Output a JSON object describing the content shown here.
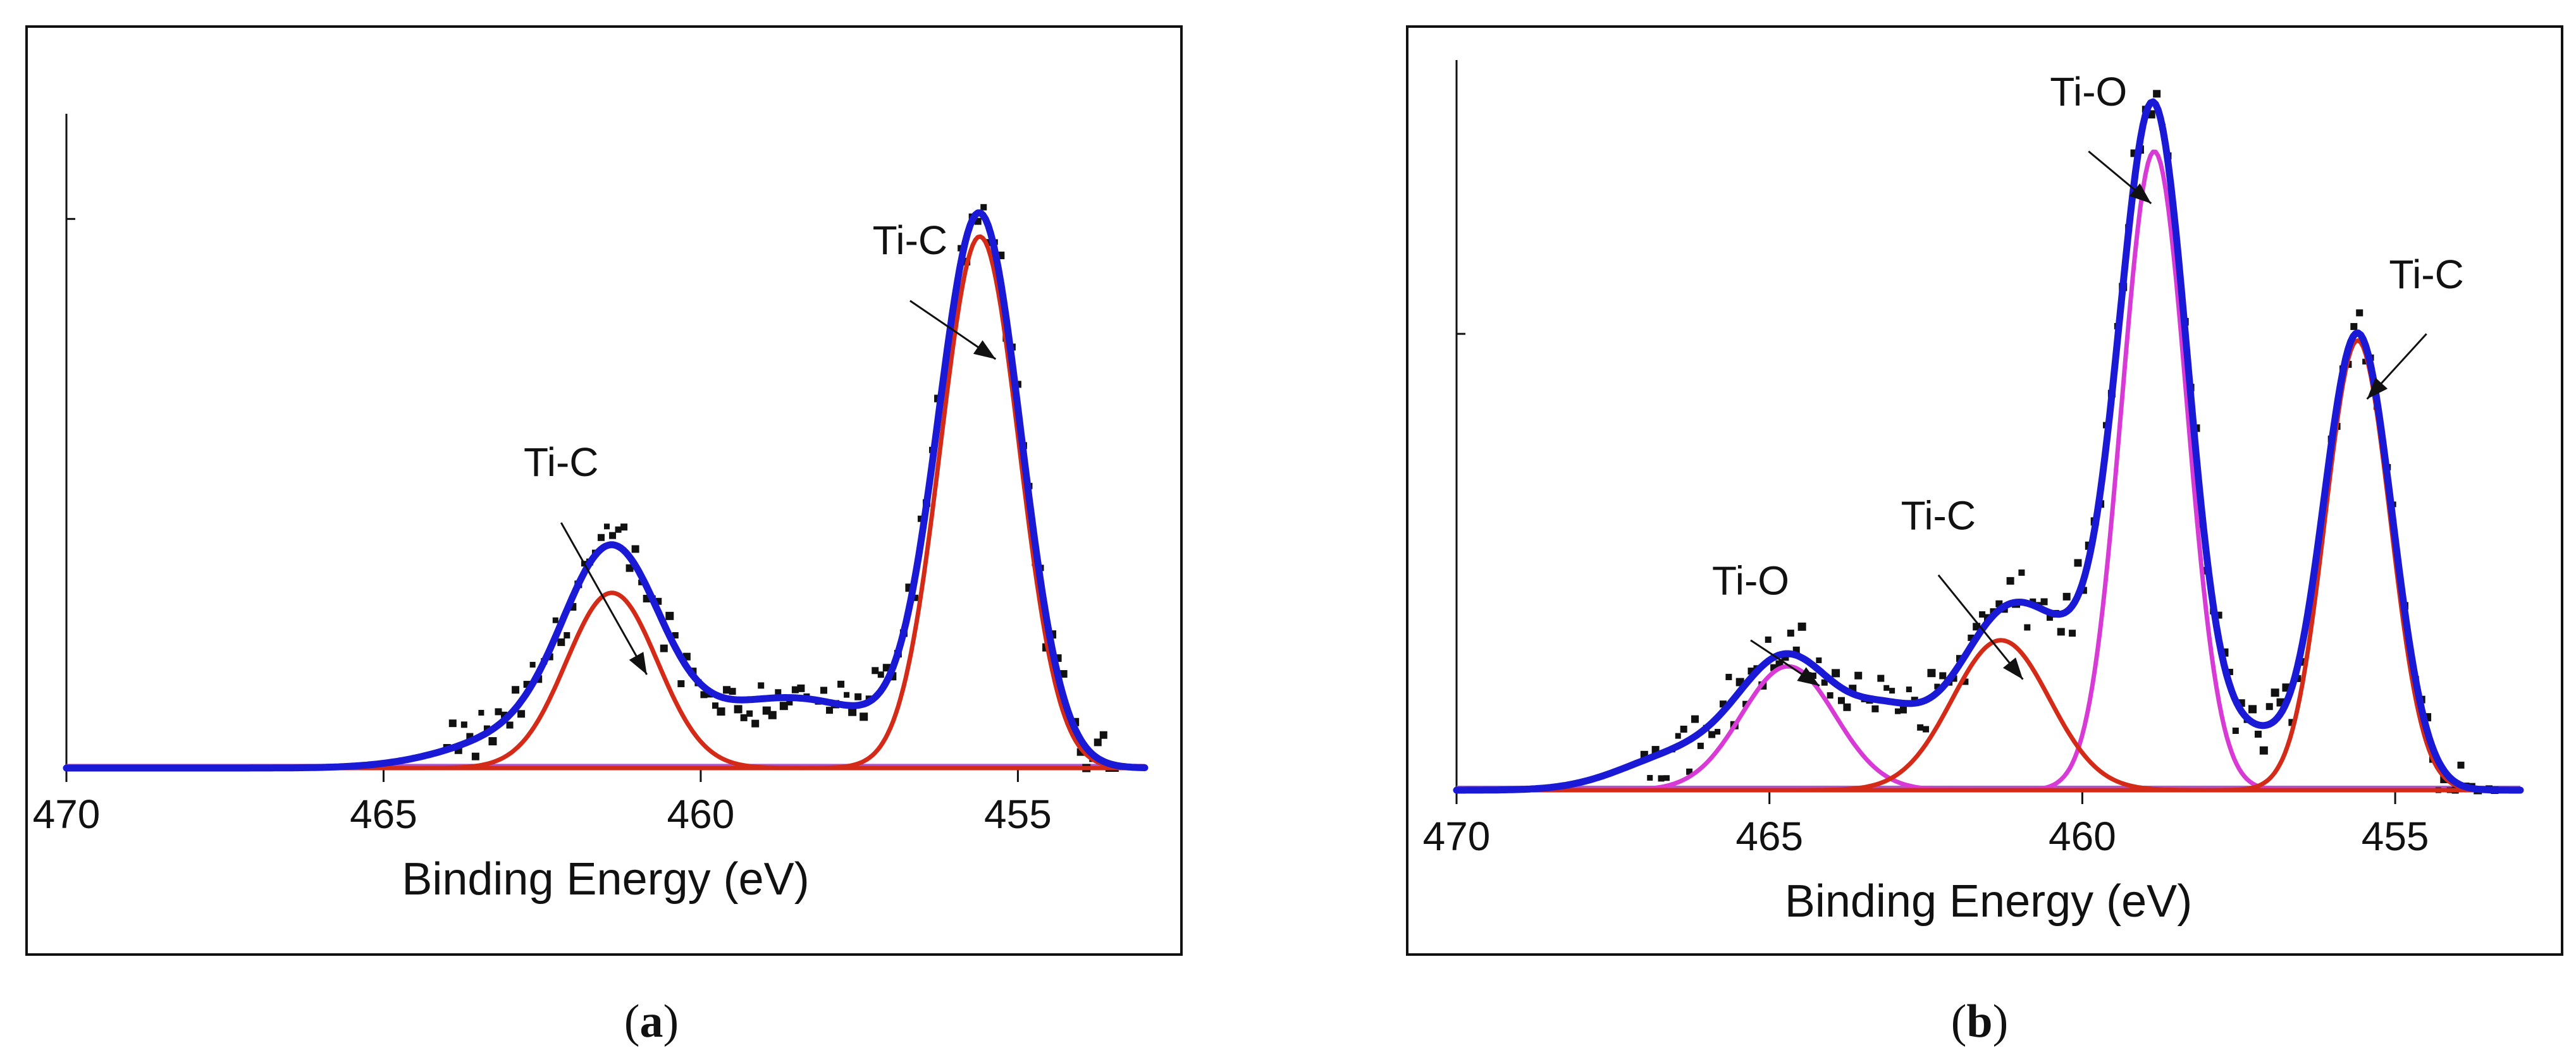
{
  "chart_data": [
    {
      "panel": "a",
      "type": "line",
      "caption_letter": "a",
      "xlabel": "Binding Energy (eV)",
      "ylabel": "",
      "xlim": [
        470,
        453
      ],
      "ylim": [
        0,
        1.12
      ],
      "x_ticks": [
        470,
        465,
        460,
        455
      ],
      "x_tick_labels": [
        "470",
        "465",
        "460",
        "455"
      ],
      "y_ticks": [
        0,
        0.94
      ],
      "colors": {
        "envelope": "#1a1ad6",
        "ti_c": "#d42a18",
        "baseline": "#b055d0",
        "points": "#111111"
      },
      "series": [
        {
          "name": "envelope",
          "color": "#1a1ad6",
          "components": [
            {
              "center": 455.6,
              "height": 0.93,
              "sigma": 0.65
            },
            {
              "center": 461.4,
              "height": 0.32,
              "sigma": 0.75
            },
            {
              "center": 458.6,
              "height": 0.12,
              "sigma": 1.6
            },
            {
              "center": 462.6,
              "height": 0.06,
              "sigma": 1.2
            }
          ]
        },
        {
          "name": "Ti-C fit 1",
          "color": "#d42a18",
          "components": [
            {
              "center": 455.6,
              "height": 0.91,
              "sigma": 0.62
            }
          ]
        },
        {
          "name": "Ti-C fit 2",
          "color": "#d42a18",
          "components": [
            {
              "center": 461.4,
              "height": 0.3,
              "sigma": 0.72
            }
          ]
        }
      ],
      "annotations": [
        {
          "text": "Ti-C",
          "label_x": 462.2,
          "label_y": 0.5,
          "arrow_from_y": 0.42,
          "arrow_to_x": 460.85,
          "arrow_to_y": 0.16
        },
        {
          "text": "Ti-C",
          "label_x": 456.7,
          "label_y": 0.88,
          "arrow_from_y": 0.8,
          "arrow_to_x": 455.35,
          "arrow_to_y": 0.7
        }
      ]
    },
    {
      "panel": "b",
      "type": "line",
      "caption_letter": "b",
      "xlabel": "Binding Energy (eV)",
      "ylabel": "",
      "xlim": [
        470,
        453
      ],
      "ylim": [
        0,
        1.12
      ],
      "x_ticks": [
        470,
        465,
        460,
        455
      ],
      "x_tick_labels": [
        "470",
        "465",
        "460",
        "455"
      ],
      "y_ticks": [
        0,
        0.7
      ],
      "colors": {
        "envelope": "#1a1ad6",
        "ti_c": "#d42a18",
        "ti_o": "#d83ad6",
        "baseline": "#b055d0",
        "points": "#111111"
      },
      "series": [
        {
          "name": "envelope",
          "color": "#1a1ad6",
          "components": [
            {
              "center": 458.85,
              "height": 1.0,
              "sigma": 0.55
            },
            {
              "center": 455.6,
              "height": 0.7,
              "sigma": 0.55
            },
            {
              "center": 461.3,
              "height": 0.24,
              "sigma": 0.8
            },
            {
              "center": 464.7,
              "height": 0.2,
              "sigma": 0.8
            },
            {
              "center": 460.0,
              "height": 0.14,
              "sigma": 0.8
            },
            {
              "center": 457.3,
              "height": 0.08,
              "sigma": 0.6
            },
            {
              "center": 463.1,
              "height": 0.09,
              "sigma": 0.6
            },
            {
              "center": 466.5,
              "height": 0.05,
              "sigma": 0.9
            }
          ]
        },
        {
          "name": "Ti-O fit 1",
          "color": "#d83ad6",
          "components": [
            {
              "center": 458.85,
              "height": 0.98,
              "sigma": 0.52
            }
          ]
        },
        {
          "name": "Ti-O fit 2",
          "color": "#d83ad6",
          "components": [
            {
              "center": 464.7,
              "height": 0.19,
              "sigma": 0.75
            }
          ]
        },
        {
          "name": "Ti-C fit 1",
          "color": "#d42a18",
          "components": [
            {
              "center": 455.6,
              "height": 0.69,
              "sigma": 0.52
            }
          ]
        },
        {
          "name": "Ti-C fit 2",
          "color": "#d42a18",
          "components": [
            {
              "center": 461.3,
              "height": 0.23,
              "sigma": 0.78
            }
          ]
        }
      ],
      "annotations": [
        {
          "text": "Ti-O",
          "label_x": 459.9,
          "label_y": 1.05,
          "arrow_from_y": 0.98,
          "arrow_to_x": 458.9,
          "arrow_to_y": 0.9
        },
        {
          "text": "Ti-C",
          "label_x": 454.5,
          "label_y": 0.77,
          "arrow_from_y": 0.7,
          "arrow_to_x": 455.45,
          "arrow_to_y": 0.6
        },
        {
          "text": "Ti-C",
          "label_x": 462.3,
          "label_y": 0.4,
          "arrow_from_y": 0.33,
          "arrow_to_x": 460.95,
          "arrow_to_y": 0.17
        },
        {
          "text": "Ti-O",
          "label_x": 465.3,
          "label_y": 0.3,
          "arrow_from_y": 0.23,
          "arrow_to_x": 464.2,
          "arrow_to_y": 0.16
        }
      ]
    }
  ]
}
